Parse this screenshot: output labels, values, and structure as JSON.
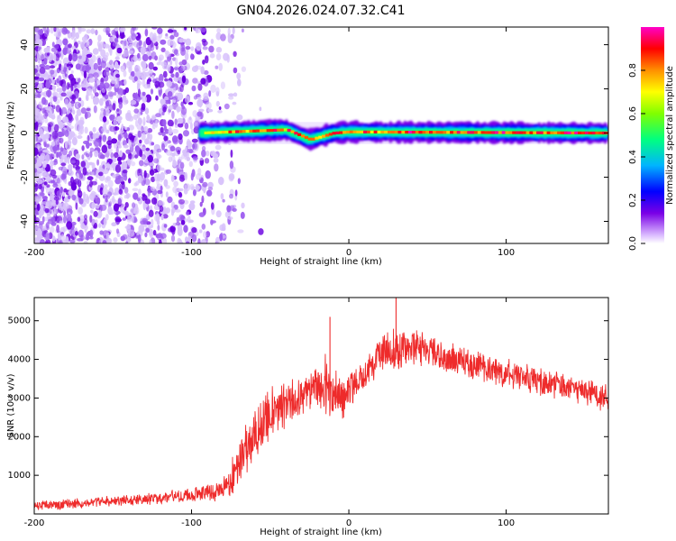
{
  "figure": {
    "title": "GN04.2026.024.07.32.C41"
  },
  "chart_data": [
    {
      "type": "heatmap",
      "title": "GN04.2026.024.07.32.C41",
      "xlabel": "Height of straight line (km)",
      "ylabel": "Frequency (Hz)",
      "xlim": [
        -200,
        165
      ],
      "ylim": [
        -50,
        48
      ],
      "xticks": [
        -200,
        -100,
        0,
        100
      ],
      "yticks": [
        -40,
        -20,
        0,
        20,
        40
      ],
      "colorbar": {
        "label": "Normalized spectral amplitude",
        "range": [
          0,
          1
        ],
        "ticks": [
          0.0,
          0.2,
          0.4,
          0.6,
          0.8
        ],
        "colormap": [
          "#ffffff",
          "#7a00e6",
          "#0000ff",
          "#00b4ff",
          "#00ff80",
          "#80ff00",
          "#ffff00",
          "#ff9000",
          "#ff0000",
          "#ff00c8"
        ]
      },
      "regions": [
        {
          "name": "noise",
          "x_range": [
            -200,
            -85
          ],
          "freq_range": [
            -50,
            48
          ],
          "amplitude_range": [
            0.0,
            0.25
          ]
        },
        {
          "name": "signal",
          "x_range": [
            -95,
            165
          ],
          "center_freq": [
            [
              -95,
              0
            ],
            [
              -40,
              1.5
            ],
            [
              -25,
              -3
            ],
            [
              -10,
              0
            ],
            [
              0,
              0.5
            ],
            [
              165,
              0
            ]
          ],
          "bandwidth_hz": 3,
          "amplitude_range": [
            0.5,
            1.0
          ]
        }
      ]
    },
    {
      "type": "line",
      "xlabel": "Height of straight line (km)",
      "ylabel": "SNR (10 * v/v)",
      "xlim": [
        -200,
        165
      ],
      "ylim": [
        0,
        5600
      ],
      "xticks": [
        -200,
        -100,
        0,
        100
      ],
      "yticks": [
        1000,
        2000,
        3000,
        4000,
        5000
      ],
      "series": [
        {
          "name": "SNR",
          "color": "#ee2b2b",
          "x": [
            -200,
            -180,
            -160,
            -140,
            -120,
            -100,
            -90,
            -80,
            -75,
            -70,
            -65,
            -60,
            -55,
            -50,
            -45,
            -40,
            -35,
            -30,
            -25,
            -20,
            -15,
            -10,
            -5,
            0,
            10,
            20,
            30,
            40,
            50,
            60,
            70,
            80,
            90,
            100,
            110,
            120,
            130,
            140,
            150,
            160,
            165
          ],
          "values": [
            200,
            250,
            300,
            350,
            420,
            500,
            560,
            650,
            850,
            1300,
            1750,
            2100,
            2350,
            2550,
            2700,
            2800,
            2950,
            3050,
            3150,
            3300,
            3350,
            3100,
            3000,
            3200,
            3700,
            4100,
            4300,
            4300,
            4200,
            4050,
            3950,
            3850,
            3750,
            3650,
            3550,
            3450,
            3350,
            3250,
            3200,
            3050,
            3000
          ],
          "spread": [
            150,
            150,
            150,
            170,
            180,
            200,
            260,
            350,
            500,
            700,
            800,
            850,
            800,
            750,
            750,
            700,
            700,
            650,
            650,
            700,
            1000,
            900,
            700,
            500,
            500,
            500,
            650,
            600,
            500,
            450,
            450,
            450,
            400,
            400,
            400,
            400,
            400,
            400,
            400,
            400,
            400
          ],
          "annotations": [
            {
              "x": 30,
              "value": 5600,
              "label": "peak"
            },
            {
              "x": -12,
              "value": 5100,
              "label": "spike"
            }
          ]
        }
      ]
    }
  ]
}
